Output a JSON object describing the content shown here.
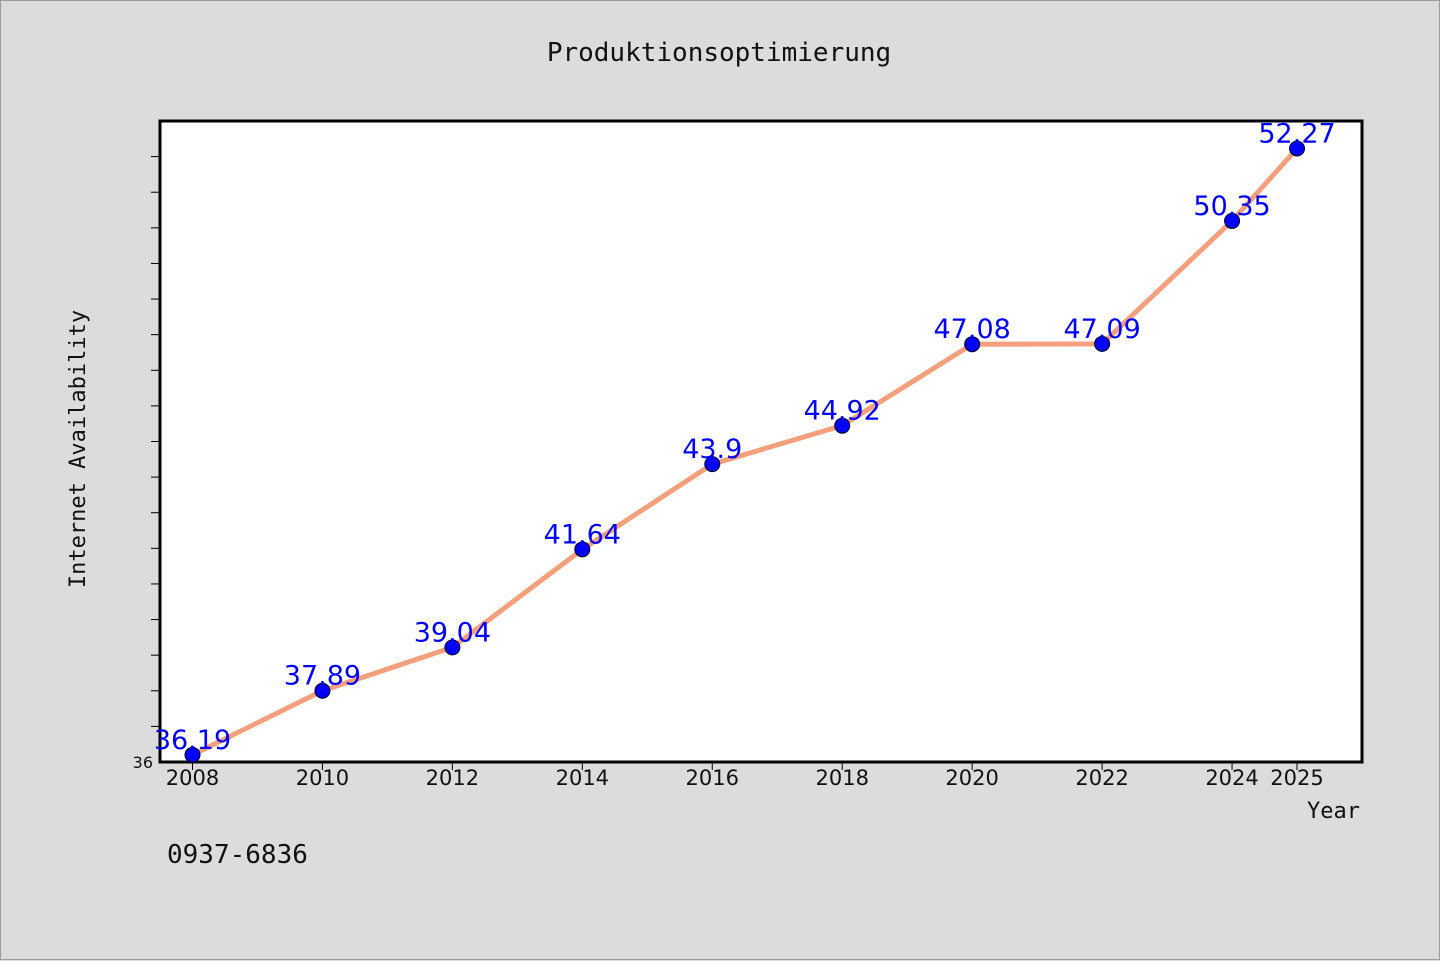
{
  "chart_data": {
    "type": "line",
    "title": "Produktionsoptimierung",
    "xlabel": "Year",
    "ylabel": "Internet Availability",
    "categories": [
      "2008",
      "2010",
      "2012",
      "2014",
      "2016",
      "2018",
      "2020",
      "2022",
      "2024",
      "2025"
    ],
    "x": [
      2008,
      2010,
      2012,
      2014,
      2016,
      2018,
      2020,
      2022,
      2024,
      2025
    ],
    "series": [
      {
        "values": [
          36.19,
          37.89,
          39.04,
          41.64,
          43.9,
          44.92,
          47.08,
          47.09,
          50.35,
          52.27
        ],
        "data_labels": [
          "36.19",
          "37.89",
          "39.04",
          "41.64",
          "43.9",
          "44.92",
          "47.08",
          "47.09",
          "50.35",
          "52.27"
        ],
        "line_color": "#f4a07c",
        "marker_color": "#0000ff"
      }
    ],
    "ylim": [
      36,
      53.0
    ],
    "xlim": [
      2007.5,
      2026.0
    ],
    "y_tick_labels": [
      "36"
    ],
    "grid": false,
    "legend": "none",
    "colors": {
      "background": "#dcdcdc",
      "plot_background": "#ffffff",
      "axis": "#000000",
      "data_label": "#0000ff"
    }
  },
  "footer": {
    "code": "0937-6836"
  }
}
